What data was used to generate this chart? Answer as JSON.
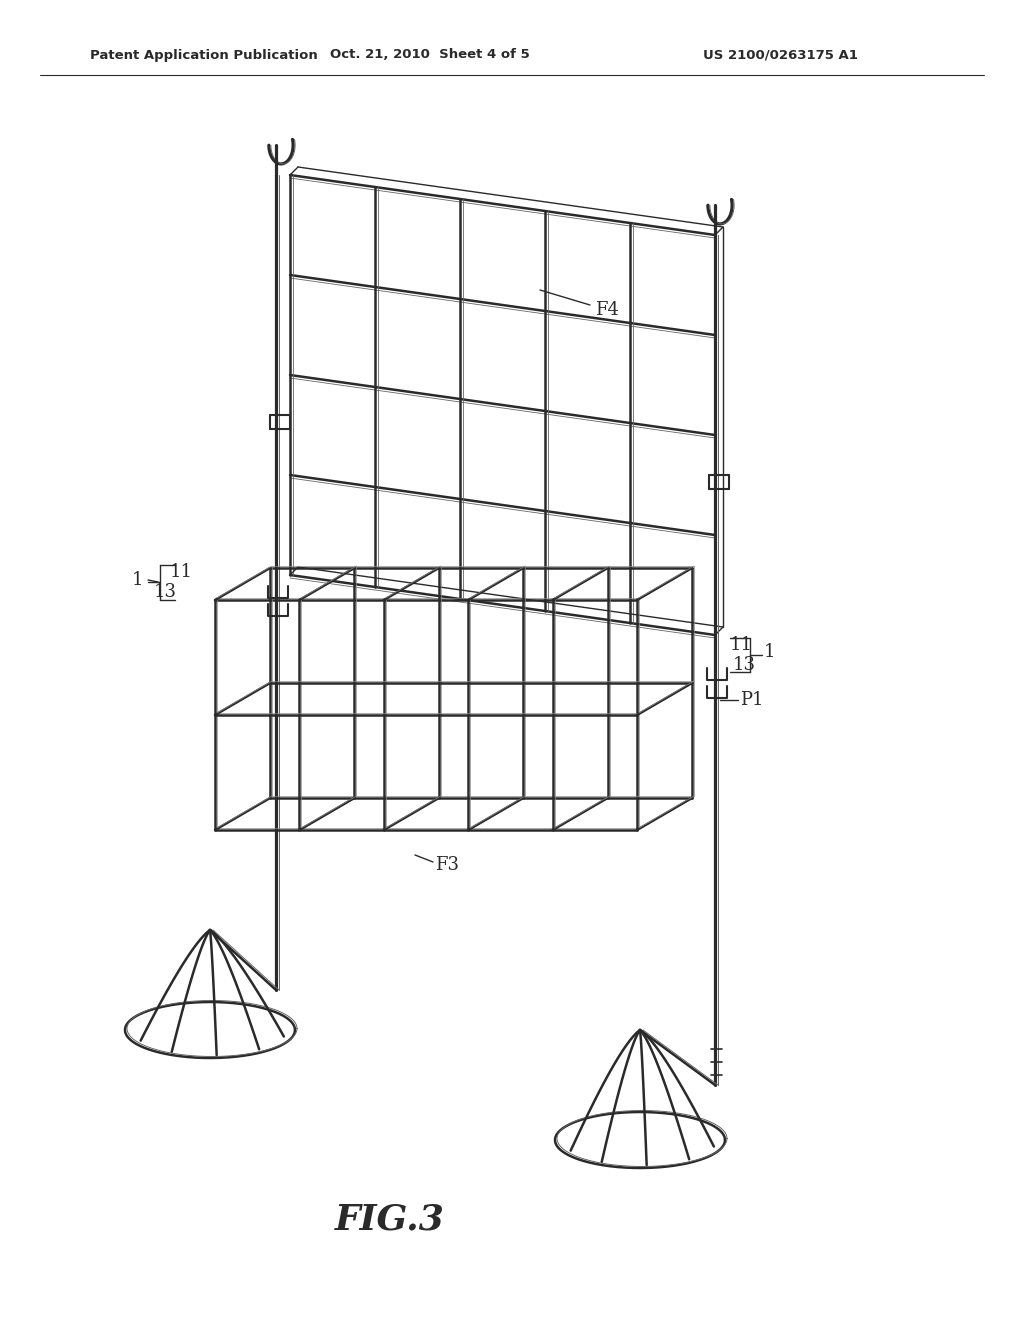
{
  "header_left": "Patent Application Publication",
  "header_mid": "Oct. 21, 2010  Sheet 4 of 5",
  "header_right": "US 2100/0263175 A1",
  "fig_label": "FIG.3",
  "bg_color": "#ffffff",
  "line_color": "#2a2a2a",
  "lw_main": 1.8,
  "lw_thin": 1.0,
  "lw_double": 0.7
}
